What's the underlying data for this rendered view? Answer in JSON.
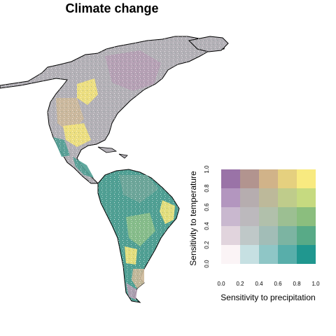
{
  "title": "Climate change",
  "legend": {
    "xlabel": "Sensitivity to precipitation",
    "ylabel": "Sensitivity to temperature",
    "x_ticks": [
      "0.0",
      "0.2",
      "0.4",
      "0.6",
      "0.8",
      "1.0"
    ],
    "y_ticks": [
      "0.0",
      "0.2",
      "0.4",
      "0.6",
      "0.8",
      "1.0"
    ],
    "grid": [
      [
        "#fbf4f6",
        "#c6e0e2",
        "#8fc6c6",
        "#58aeaa",
        "#20978f"
      ],
      [
        "#e1d4dd",
        "#bfc8c8",
        "#a2bdb7",
        "#7cb4a2",
        "#58aa87"
      ],
      [
        "#c9b8cf",
        "#bcb9bd",
        "#b1c0ab",
        "#9cbf92",
        "#8bbe7e"
      ],
      [
        "#b396bf",
        "#b6adaf",
        "#bdb99a",
        "#bfcc8b",
        "#c6da80"
      ],
      [
        "#9a73a7",
        "#b2948f",
        "#d1b389",
        "#e5d07f",
        "#f8ea80"
      ]
    ]
  },
  "map": {
    "colors": {
      "north_gray": "#b3b0b6",
      "mauve": "#b59fb4",
      "yellow": "#f2e37a",
      "teal": "#4f9f93",
      "green": "#8cbf8a",
      "sand": "#cdb99a",
      "outline": "#000000"
    }
  }
}
